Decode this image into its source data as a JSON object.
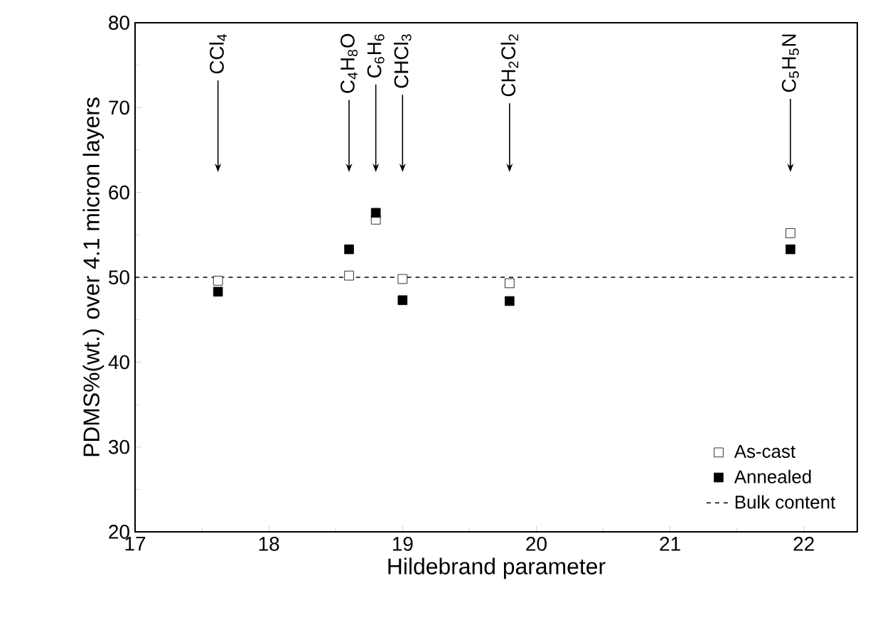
{
  "chart_data": {
    "type": "scatter",
    "xlabel": "Hildebrand parameter",
    "ylabel": "PDMS%(wt.) over 4.1 micron layers",
    "xlim": [
      17,
      22.4
    ],
    "ylim": [
      20,
      80
    ],
    "xticks": [
      17,
      18,
      19,
      20,
      21,
      22
    ],
    "yticks": [
      20,
      30,
      40,
      50,
      60,
      70,
      80
    ],
    "series": [
      {
        "name": "As-cast",
        "color": "#000000",
        "marker": "square",
        "x": [
          17.62,
          18.6,
          18.8,
          19.0,
          19.8,
          21.9
        ],
        "values": [
          49.6,
          50.2,
          56.8,
          49.8,
          49.3,
          55.2
        ]
      },
      {
        "name": "Annealed",
        "color": "#000000",
        "marker": "square",
        "x": [
          17.62,
          18.6,
          18.8,
          19.0,
          19.8,
          21.9
        ],
        "values": [
          48.3,
          53.3,
          57.6,
          47.3,
          47.2,
          53.3
        ]
      }
    ],
    "ref_lines": [
      {
        "axis": "y",
        "value": 50,
        "label": "Bulk content",
        "line_style": "dashed",
        "color": "#000000"
      }
    ],
    "annotations": [
      "CCl$_{4}$",
      "C$_{4}$H$_{8}$O",
      "C$_{6}$H$_{6}$",
      "CHCl$_{3}$",
      "CH$_{2}$Cl$_{2}$",
      "C$_{5}$H$_{5}$N"
    ],
    "legend": "bottom right",
    "grid": false
  }
}
